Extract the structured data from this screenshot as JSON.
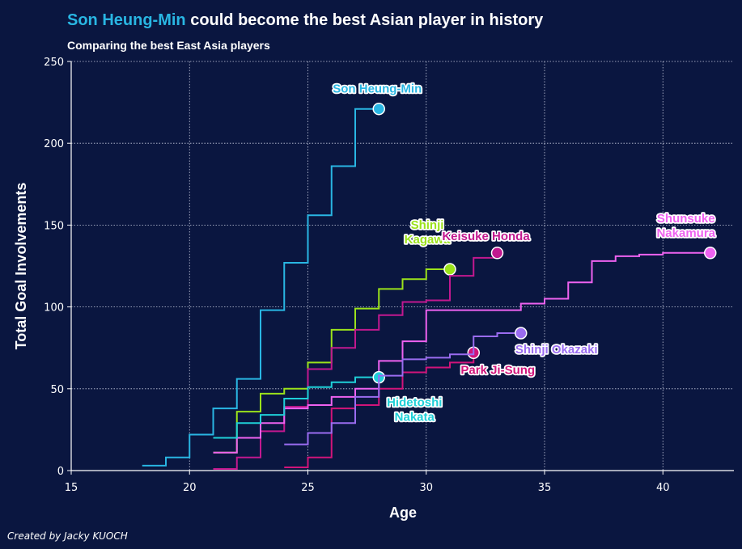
{
  "chart_data": {
    "type": "line",
    "step": true,
    "title_highlight": "Son Heung-Min",
    "title_rest": " could become the best Asian player in history",
    "subtitle": "Comparing the best East Asia players",
    "xlabel": "Age",
    "ylabel": "Total Goal Involvements",
    "xlim": [
      15,
      43
    ],
    "ylim": [
      0,
      250
    ],
    "xticks": [
      15,
      20,
      25,
      30,
      35,
      40
    ],
    "yticks": [
      0,
      50,
      100,
      150,
      200,
      250
    ],
    "grid": true,
    "credit": "Created by Jacky KUOCH",
    "series": [
      {
        "name": "Son Heung-Min",
        "label_lines": [
          "Son Heung-Min"
        ],
        "color": "#29b6e3",
        "x": [
          18,
          19,
          20,
          21,
          22,
          23,
          24,
          25,
          26,
          27,
          28
        ],
        "y": [
          3,
          8,
          22,
          38,
          56,
          98,
          127,
          156,
          186,
          221,
          221
        ]
      },
      {
        "name": "Shinji Kagawa",
        "label_lines": [
          "Shinji",
          "Kagawa"
        ],
        "color": "#9be21b",
        "x": [
          21,
          22,
          23,
          24,
          25,
          26,
          27,
          28,
          29,
          30,
          31
        ],
        "y": [
          11,
          36,
          47,
          50,
          66,
          86,
          99,
          111,
          117,
          123,
          123
        ]
      },
      {
        "name": "Keisuke Honda",
        "label_lines": [
          "Keisuke Honda"
        ],
        "color": "#c2188f",
        "x": [
          21,
          22,
          23,
          24,
          25,
          26,
          27,
          28,
          29,
          30,
          31,
          32,
          33
        ],
        "y": [
          1,
          8,
          24,
          39,
          62,
          75,
          86,
          95,
          103,
          104,
          119,
          130,
          133
        ]
      },
      {
        "name": "Shunsuke Nakamura",
        "label_lines": [
          "Shunsuke",
          "Nakamura"
        ],
        "color": "#ee62f0",
        "x": [
          21,
          22,
          23,
          24,
          25,
          26,
          27,
          28,
          29,
          30,
          31,
          32,
          33,
          34,
          35,
          36,
          37,
          38,
          39,
          40,
          41,
          42
        ],
        "y": [
          11,
          20,
          29,
          38,
          40,
          45,
          50,
          67,
          79,
          98,
          98,
          98,
          98,
          102,
          105,
          115,
          128,
          131,
          132,
          133,
          133,
          133
        ]
      },
      {
        "name": "Hidetoshi Nakata",
        "label_lines": [
          "Hidetoshi",
          "Nakata"
        ],
        "color": "#1fd0d8",
        "x": [
          21,
          22,
          23,
          24,
          25,
          26,
          27,
          28
        ],
        "y": [
          20,
          29,
          34,
          44,
          51,
          54,
          57,
          57
        ]
      },
      {
        "name": "Park Ji-Sung",
        "label_lines": [
          "Park Ji-Sung"
        ],
        "color": "#d1147a",
        "x": [
          24,
          25,
          26,
          27,
          28,
          29,
          30,
          31,
          32
        ],
        "y": [
          2,
          8,
          38,
          40,
          50,
          60,
          63,
          66,
          72
        ]
      },
      {
        "name": "Shinji Okazaki",
        "label_lines": [
          "Shinji Okazaki"
        ],
        "color": "#9a6cf0",
        "x": [
          24,
          25,
          26,
          27,
          28,
          29,
          30,
          31,
          32,
          33,
          34
        ],
        "y": [
          16,
          23,
          29,
          45,
          58,
          68,
          69,
          71,
          82,
          84,
          84
        ]
      }
    ]
  }
}
